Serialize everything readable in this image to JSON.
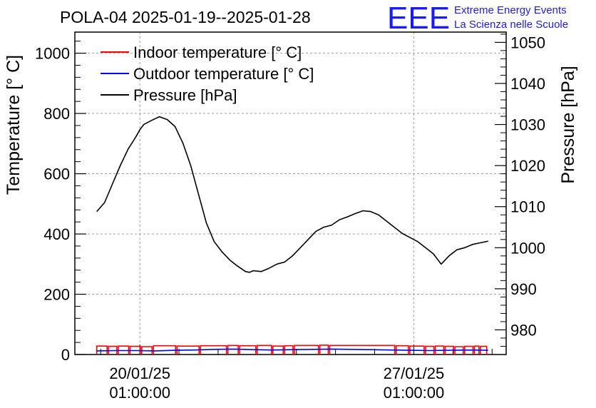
{
  "chart_data": {
    "type": "line",
    "title": "POLA-04 2025-01-19--2025-01-28",
    "logo": {
      "mark": "EEE",
      "line1": "Extreme Energy Events",
      "line2": "La Scienza nelle Scuole"
    },
    "ylabel_left": "Temperature [° C]",
    "ylabel_right": "Pressure [hPa]",
    "y_left_lim": [
      0,
      1070
    ],
    "y_right_lim": [
      974,
      1052.5
    ],
    "x_lim": [
      -1.66,
      9.36
    ],
    "y_left_ticks": [
      "0",
      "200",
      "400",
      "600",
      "800",
      "1000"
    ],
    "y_left_tick_values": [
      0,
      200,
      400,
      600,
      800,
      1000
    ],
    "y_right_ticks": [
      "980",
      "990",
      "1000",
      "1010",
      "1020",
      "1030",
      "1040",
      "1050"
    ],
    "y_right_tick_values": [
      980,
      990,
      1000,
      1010,
      1020,
      1030,
      1040,
      1050
    ],
    "x_ticks": [
      {
        "day": 0,
        "line1": "20/01/25",
        "line2": "01:00:00"
      },
      {
        "day": 7,
        "line1": "27/01/25",
        "line2": "01:00:00"
      }
    ],
    "grid": true,
    "legend_position": "top-left",
    "series": [
      {
        "name": "Indoor temperature [° C]",
        "color": "#ff0000",
        "axis": "left",
        "x": [
          -1.1,
          -0.8,
          -0.55,
          -0.25,
          0.05,
          0.35,
          0.95,
          1.55,
          2.25,
          2.55,
          3.0,
          3.4,
          3.7,
          3.95,
          4.6,
          4.85,
          6.55,
          6.9,
          7.3,
          7.55,
          7.8,
          8.05,
          8.3,
          8.55,
          8.7,
          8.9
        ],
        "values": [
          28,
          27,
          28,
          27,
          26,
          29,
          28,
          29,
          30,
          29,
          30,
          28,
          29,
          30,
          31,
          30,
          29,
          28,
          27,
          28,
          27,
          26,
          27,
          28,
          27,
          28
        ]
      },
      {
        "name": "Outdoor temperature [° C]",
        "color": "#0000ff",
        "axis": "left",
        "x": [
          -1.1,
          -0.6,
          -0.1,
          0.4,
          0.9,
          1.4,
          1.9,
          2.4,
          2.9,
          3.4,
          3.9,
          4.4,
          4.9,
          5.4,
          5.9,
          6.4,
          6.9,
          7.4,
          7.9,
          8.4,
          8.9
        ],
        "values": [
          12,
          13,
          13,
          12,
          14,
          15,
          17,
          18,
          16,
          15,
          16,
          17,
          18,
          17,
          16,
          15,
          14,
          13,
          14,
          15,
          14
        ]
      },
      {
        "name": "Pressure [hPa]",
        "color": "#000000",
        "axis": "right",
        "x": [
          -1.1,
          -0.9,
          -0.7,
          -0.5,
          -0.3,
          -0.1,
          0.0,
          0.1,
          0.3,
          0.5,
          0.7,
          0.9,
          1.1,
          1.3,
          1.5,
          1.7,
          1.9,
          2.1,
          2.3,
          2.5,
          2.7,
          2.8,
          2.9,
          3.1,
          3.3,
          3.5,
          3.7,
          3.9,
          4.1,
          4.3,
          4.5,
          4.7,
          4.9,
          5.1,
          5.3,
          5.5,
          5.7,
          5.9,
          6.1,
          6.3,
          6.5,
          6.7,
          6.9,
          7.1,
          7.3,
          7.5,
          7.7,
          7.9,
          8.1,
          8.3,
          8.5,
          8.7,
          8.9
        ],
        "values": [
          1008.8,
          1011.0,
          1015.5,
          1020.0,
          1024.0,
          1027.0,
          1028.7,
          1030.0,
          1031.0,
          1031.9,
          1031.2,
          1029.5,
          1025.5,
          1020.0,
          1013.0,
          1006.0,
          1001.5,
          999.0,
          997.0,
          995.5,
          994.2,
          994.0,
          994.4,
          994.2,
          995.0,
          996.0,
          996.5,
          998.0,
          1000.0,
          1002.0,
          1004.0,
          1005.0,
          1005.5,
          1006.8,
          1007.5,
          1008.3,
          1009.0,
          1008.8,
          1008.0,
          1006.5,
          1005.0,
          1003.5,
          1002.5,
          1001.5,
          1000.0,
          998.5,
          996.0,
          998.0,
          999.5,
          1000.0,
          1000.8,
          1001.2,
          1001.6
        ]
      }
    ]
  }
}
